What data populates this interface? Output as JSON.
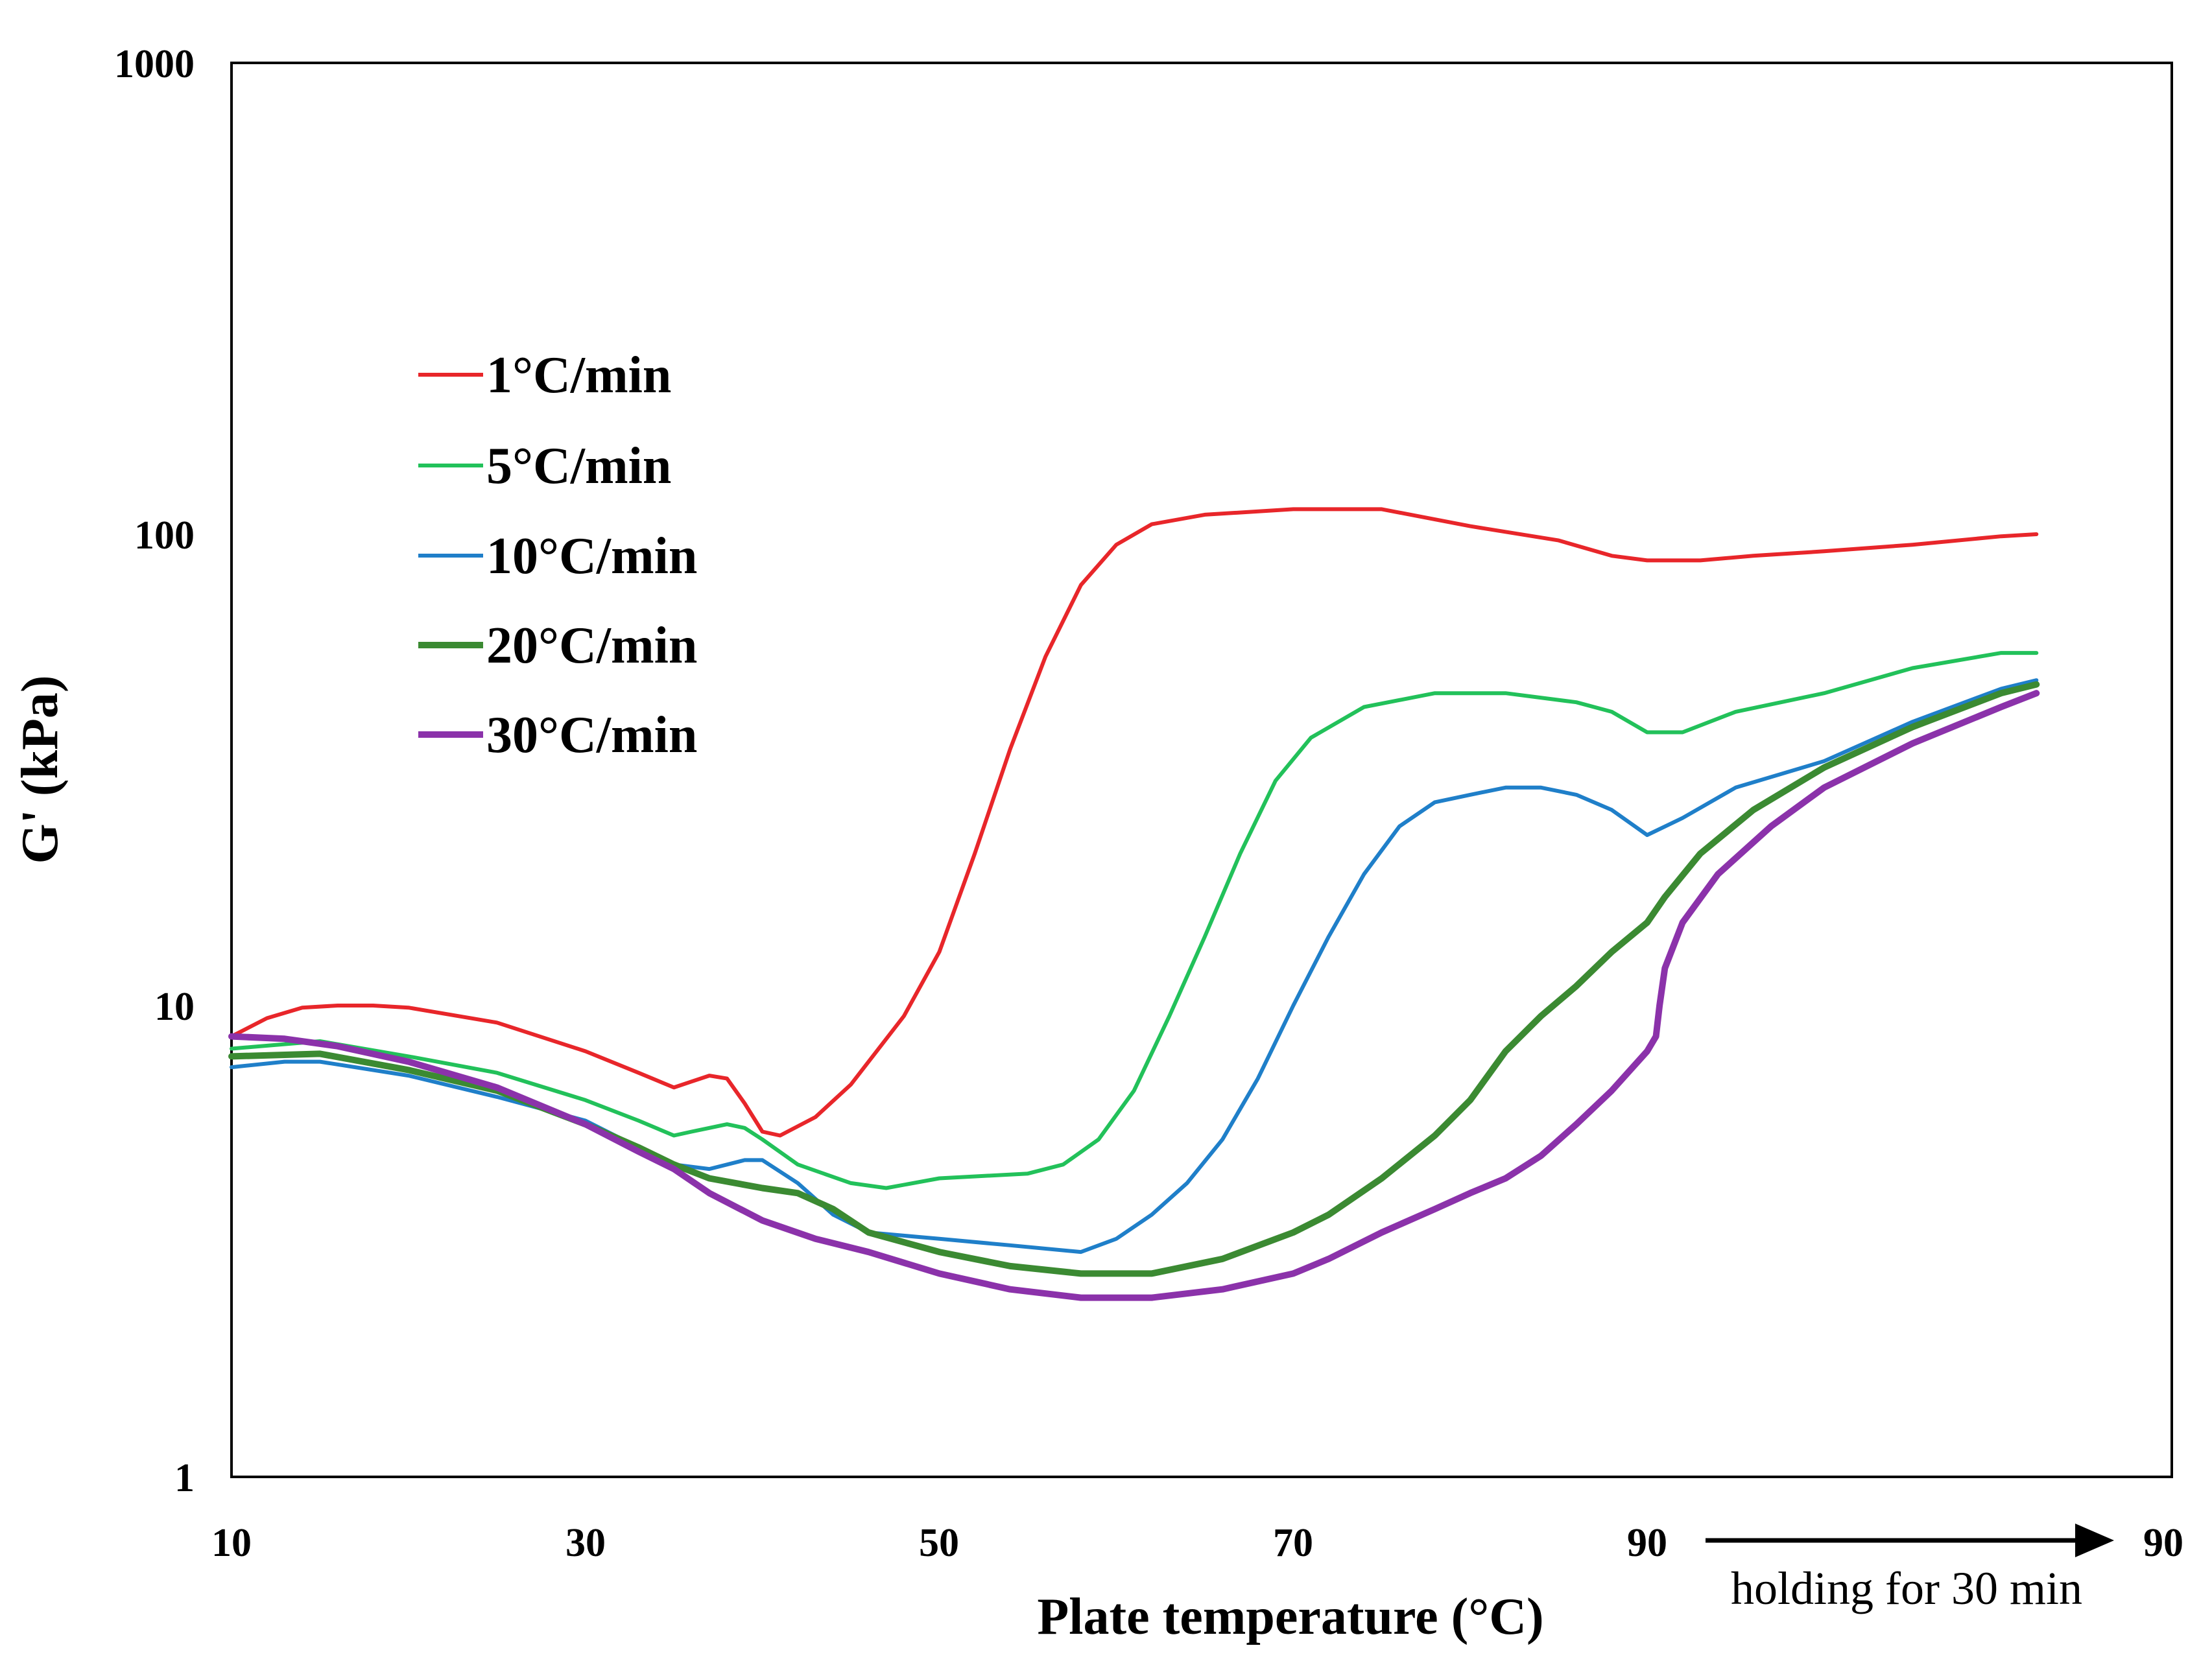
{
  "chart_data": {
    "type": "line",
    "xlabel": "Plate temperature (°C)",
    "ylabel": "G' (kPa)",
    "yscale": "log",
    "ylim": [
      1,
      1000
    ],
    "y_ticks": [
      "1",
      "10",
      "100",
      "1000"
    ],
    "x_ticks": [
      "10",
      "30",
      "50",
      "70",
      "90",
      "90"
    ],
    "xlim_note": "ramp from 10 to 90 °C, then holding segment (30 min) shown to the right of 90 °C",
    "hold_annotation": "holding for 30 min",
    "legend": [
      "1°C/min",
      "5°C/min",
      "10°C/min",
      "20°C/min",
      "30°C/min"
    ],
    "series": [
      {
        "name": "1°C/min",
        "color": "#e8262a",
        "points": [
          [
            10,
            8.6
          ],
          [
            12,
            9.4
          ],
          [
            14,
            9.9
          ],
          [
            16,
            10.0
          ],
          [
            18,
            10.0
          ],
          [
            20,
            9.9
          ],
          [
            25,
            9.2
          ],
          [
            30,
            8.0
          ],
          [
            33,
            7.2
          ],
          [
            35,
            6.7
          ],
          [
            36,
            6.9
          ],
          [
            37,
            7.1
          ],
          [
            38,
            7.0
          ],
          [
            39,
            6.2
          ],
          [
            40,
            5.4
          ],
          [
            41,
            5.3
          ],
          [
            43,
            5.8
          ],
          [
            45,
            6.8
          ],
          [
            48,
            9.5
          ],
          [
            50,
            13
          ],
          [
            52,
            21
          ],
          [
            54,
            35
          ],
          [
            56,
            55
          ],
          [
            58,
            78
          ],
          [
            60,
            95
          ],
          [
            62,
            105
          ],
          [
            65,
            110
          ],
          [
            70,
            113
          ],
          [
            75,
            113
          ],
          [
            80,
            104
          ],
          [
            85,
            97
          ],
          [
            88,
            90
          ],
          [
            90,
            88
          ],
          [
            93,
            88
          ],
          [
            96,
            90
          ],
          [
            100,
            92
          ],
          [
            105,
            95
          ],
          [
            110,
            99
          ],
          [
            112,
            100
          ]
        ]
      },
      {
        "name": "5°C/min",
        "color": "#22c15a",
        "points": [
          [
            10,
            8.1
          ],
          [
            15,
            8.4
          ],
          [
            20,
            7.8
          ],
          [
            25,
            7.2
          ],
          [
            30,
            6.3
          ],
          [
            33,
            5.7
          ],
          [
            35,
            5.3
          ],
          [
            36,
            5.4
          ],
          [
            37,
            5.5
          ],
          [
            38,
            5.6
          ],
          [
            39,
            5.5
          ],
          [
            40,
            5.2
          ],
          [
            42,
            4.6
          ],
          [
            45,
            4.2
          ],
          [
            47,
            4.1
          ],
          [
            50,
            4.3
          ],
          [
            55,
            4.4
          ],
          [
            57,
            4.6
          ],
          [
            59,
            5.2
          ],
          [
            61,
            6.6
          ],
          [
            63,
            9.5
          ],
          [
            65,
            14
          ],
          [
            67,
            21
          ],
          [
            69,
            30
          ],
          [
            71,
            37
          ],
          [
            74,
            43
          ],
          [
            78,
            46
          ],
          [
            82,
            46
          ],
          [
            86,
            44
          ],
          [
            88,
            42
          ],
          [
            90,
            38
          ],
          [
            92,
            38
          ],
          [
            95,
            42
          ],
          [
            100,
            46
          ],
          [
            105,
            52
          ],
          [
            110,
            56
          ],
          [
            112,
            56
          ]
        ]
      },
      {
        "name": "10°C/min",
        "color": "#1f7fc9",
        "points": [
          [
            10,
            7.4
          ],
          [
            13,
            7.6
          ],
          [
            15,
            7.6
          ],
          [
            20,
            7.1
          ],
          [
            25,
            6.4
          ],
          [
            30,
            5.7
          ],
          [
            33,
            5.0
          ],
          [
            35,
            4.6
          ],
          [
            37,
            4.5
          ],
          [
            39,
            4.7
          ],
          [
            40,
            4.7
          ],
          [
            42,
            4.2
          ],
          [
            44,
            3.6
          ],
          [
            46,
            3.3
          ],
          [
            50,
            3.2
          ],
          [
            54,
            3.1
          ],
          [
            58,
            3.0
          ],
          [
            60,
            3.2
          ],
          [
            62,
            3.6
          ],
          [
            64,
            4.2
          ],
          [
            66,
            5.2
          ],
          [
            68,
            7
          ],
          [
            70,
            10
          ],
          [
            72,
            14
          ],
          [
            74,
            19
          ],
          [
            76,
            24
          ],
          [
            78,
            27
          ],
          [
            80,
            28
          ],
          [
            82,
            29
          ],
          [
            84,
            29
          ],
          [
            86,
            28
          ],
          [
            88,
            26
          ],
          [
            90,
            23
          ],
          [
            92,
            25
          ],
          [
            95,
            29
          ],
          [
            100,
            33
          ],
          [
            105,
            40
          ],
          [
            110,
            47
          ],
          [
            112,
            49
          ]
        ]
      },
      {
        "name": "20°C/min",
        "color": "#3b8a32",
        "points": [
          [
            10,
            7.8
          ],
          [
            15,
            7.9
          ],
          [
            20,
            7.3
          ],
          [
            25,
            6.6
          ],
          [
            30,
            5.6
          ],
          [
            33,
            5.0
          ],
          [
            35,
            4.6
          ],
          [
            37,
            4.3
          ],
          [
            40,
            4.1
          ],
          [
            42,
            4.0
          ],
          [
            44,
            3.7
          ],
          [
            46,
            3.3
          ],
          [
            50,
            3.0
          ],
          [
            54,
            2.8
          ],
          [
            58,
            2.7
          ],
          [
            62,
            2.7
          ],
          [
            66,
            2.9
          ],
          [
            70,
            3.3
          ],
          [
            72,
            3.6
          ],
          [
            75,
            4.3
          ],
          [
            78,
            5.3
          ],
          [
            80,
            6.3
          ],
          [
            82,
            8
          ],
          [
            84,
            9.5
          ],
          [
            86,
            11
          ],
          [
            88,
            13
          ],
          [
            90,
            15
          ],
          [
            91,
            17
          ],
          [
            93,
            21
          ],
          [
            96,
            26
          ],
          [
            100,
            32
          ],
          [
            105,
            39
          ],
          [
            110,
            46
          ],
          [
            112,
            48
          ]
        ]
      },
      {
        "name": "30°C/min",
        "color": "#8b32aa",
        "points": [
          [
            10,
            8.6
          ],
          [
            13,
            8.5
          ],
          [
            16,
            8.2
          ],
          [
            20,
            7.6
          ],
          [
            25,
            6.7
          ],
          [
            30,
            5.6
          ],
          [
            33,
            4.9
          ],
          [
            35,
            4.5
          ],
          [
            37,
            4.0
          ],
          [
            40,
            3.5
          ],
          [
            43,
            3.2
          ],
          [
            46,
            3.0
          ],
          [
            50,
            2.7
          ],
          [
            54,
            2.5
          ],
          [
            58,
            2.4
          ],
          [
            62,
            2.4
          ],
          [
            66,
            2.5
          ],
          [
            70,
            2.7
          ],
          [
            72,
            2.9
          ],
          [
            75,
            3.3
          ],
          [
            78,
            3.7
          ],
          [
            80,
            4.0
          ],
          [
            82,
            4.3
          ],
          [
            84,
            4.8
          ],
          [
            86,
            5.6
          ],
          [
            88,
            6.6
          ],
          [
            90,
            8.0
          ],
          [
            90.5,
            8.6
          ],
          [
            90.7,
            10
          ],
          [
            91,
            12
          ],
          [
            92,
            15
          ],
          [
            94,
            19
          ],
          [
            97,
            24
          ],
          [
            100,
            29
          ],
          [
            105,
            36
          ],
          [
            110,
            43
          ],
          [
            112,
            46
          ]
        ]
      }
    ]
  }
}
